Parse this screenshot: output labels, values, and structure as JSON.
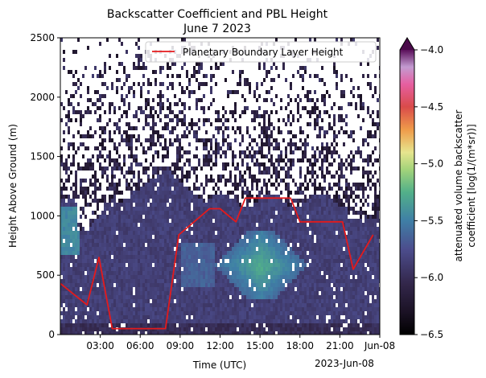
{
  "chart_data": {
    "type": "heatmap",
    "title": "Backscatter Coefficient and PBL Height",
    "subtitle": "June 7 2023",
    "xlabel": "Time (UTC)",
    "ylabel": "Height Above Ground (m)",
    "x_ticks": [
      "03:00",
      "06:00",
      "09:00",
      "12:00",
      "15:00",
      "18:00",
      "21:00",
      "Jun-08"
    ],
    "x_offset_label": "2023-Jun-08",
    "xlim_hours": [
      0,
      24
    ],
    "y_ticks": [
      "0",
      "500",
      "1000",
      "1500",
      "2000",
      "2500"
    ],
    "ylim": [
      0,
      2500
    ],
    "colorbar": {
      "label_line1": "attenuated volume backscatter",
      "label_line2": "coefficient [log(1/(m*sr))]",
      "ticks": [
        "−4.0",
        "−4.5",
        "−5.0",
        "−5.5",
        "−6.0",
        "−6.5"
      ],
      "range": [
        -6.5,
        -4.0
      ],
      "extend": "max",
      "colormap": "cubehelix-like (black, purple, blue, green, yellow, orange, red, pink, purple)"
    },
    "series": [
      {
        "name": "Planetary Boundary Layer Height",
        "color": "#e41a1c",
        "x_hours": [
          0.0,
          2.0,
          2.9,
          3.9,
          6.1,
          7.9,
          8.9,
          11.2,
          12.0,
          13.2,
          13.9,
          15.5,
          17.3,
          18.0,
          21.2,
          22.0,
          23.5
        ],
        "y_m": [
          430,
          250,
          650,
          50,
          50,
          50,
          840,
          1060,
          1060,
          950,
          1150,
          1150,
          1150,
          950,
          950,
          550,
          840
        ]
      }
    ],
    "legend_location": "upper right"
  }
}
